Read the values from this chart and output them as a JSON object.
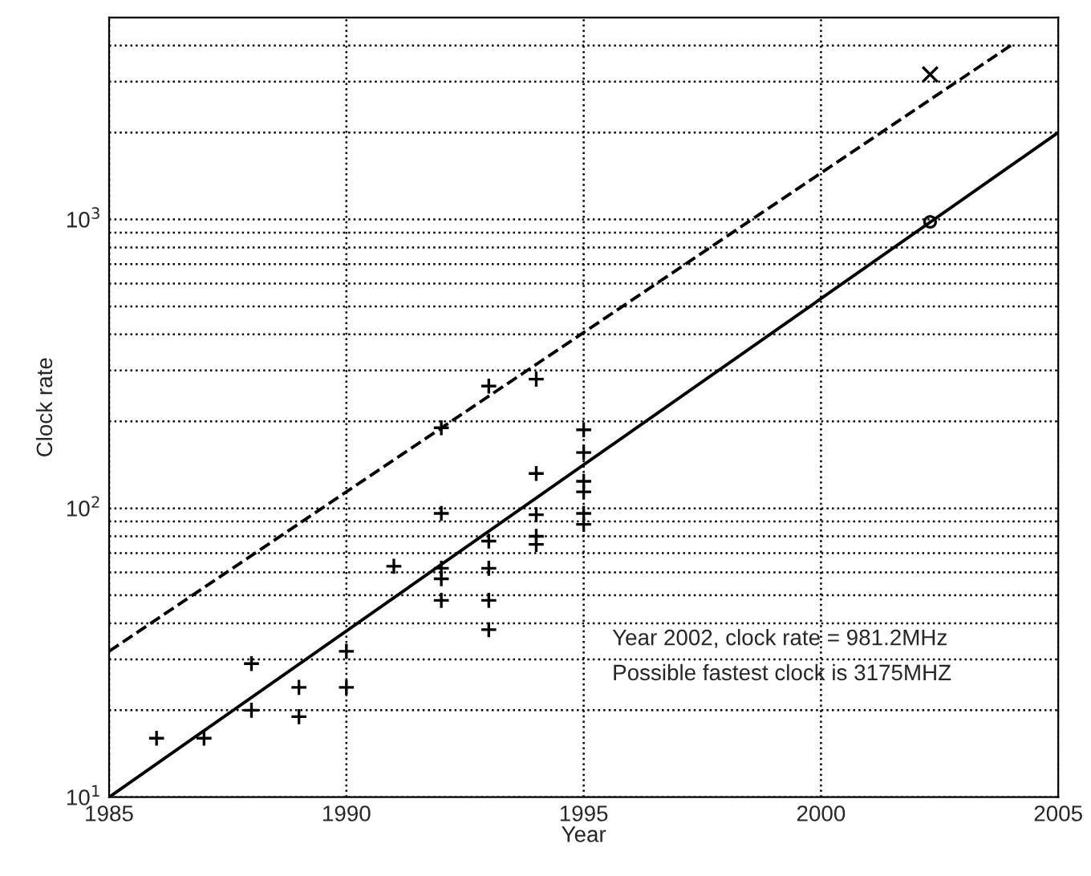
{
  "chart_data": {
    "type": "scatter",
    "xlabel": "Year",
    "ylabel": "Clock rate",
    "log": "y",
    "grid": true,
    "xlim": [
      1985,
      2005
    ],
    "xticks": [
      1985,
      1990,
      1995,
      2000,
      2005
    ],
    "ylim": [
      10,
      5000
    ],
    "yticks": [
      {
        "value": 10,
        "label": "10$^{1}$"
      },
      {
        "value": 100,
        "label": "10$^{2}$"
      },
      {
        "value": 1000,
        "label": "10$^{3}$"
      }
    ],
    "series": [
      {
        "marker": "cross",
        "color": "#000000",
        "x": [
          1986,
          1987,
          1988,
          1988,
          1989,
          1989,
          1990,
          1990,
          1991,
          1992,
          1992,
          1992,
          1992,
          1992,
          1993,
          1993,
          1993,
          1993,
          1993,
          1994,
          1994,
          1994,
          1994,
          1994,
          1995,
          1995,
          1995,
          1995,
          1995,
          1995
        ],
        "values": [
          16,
          16,
          20,
          29,
          19,
          24,
          24,
          32,
          63,
          48,
          57,
          62,
          96,
          190,
          38,
          48,
          62,
          77,
          265,
          75,
          80,
          95,
          132,
          280,
          88,
          96,
          114,
          124,
          156,
          187
        ]
      },
      {
        "type": "line",
        "line_style": "solid",
        "color": "#000000",
        "x": [
          1985,
          2005
        ],
        "values": [
          10,
          2000
        ]
      },
      {
        "type": "line",
        "line_style": "dashed",
        "color": "#000000",
        "x": [
          1985,
          2004
        ],
        "values": [
          32,
          4000
        ]
      },
      {
        "marker": "circle",
        "color": "#000000",
        "x": [
          2002.3
        ],
        "values": [
          981.2
        ]
      },
      {
        "marker": "x",
        "color": "#000000",
        "x": [
          2002.3
        ],
        "values": [
          3175
        ]
      }
    ],
    "annotations": [
      "Year 2002, clock rate = 981.2MHz",
      "Possible fastest clock is 3175MHZ"
    ]
  }
}
